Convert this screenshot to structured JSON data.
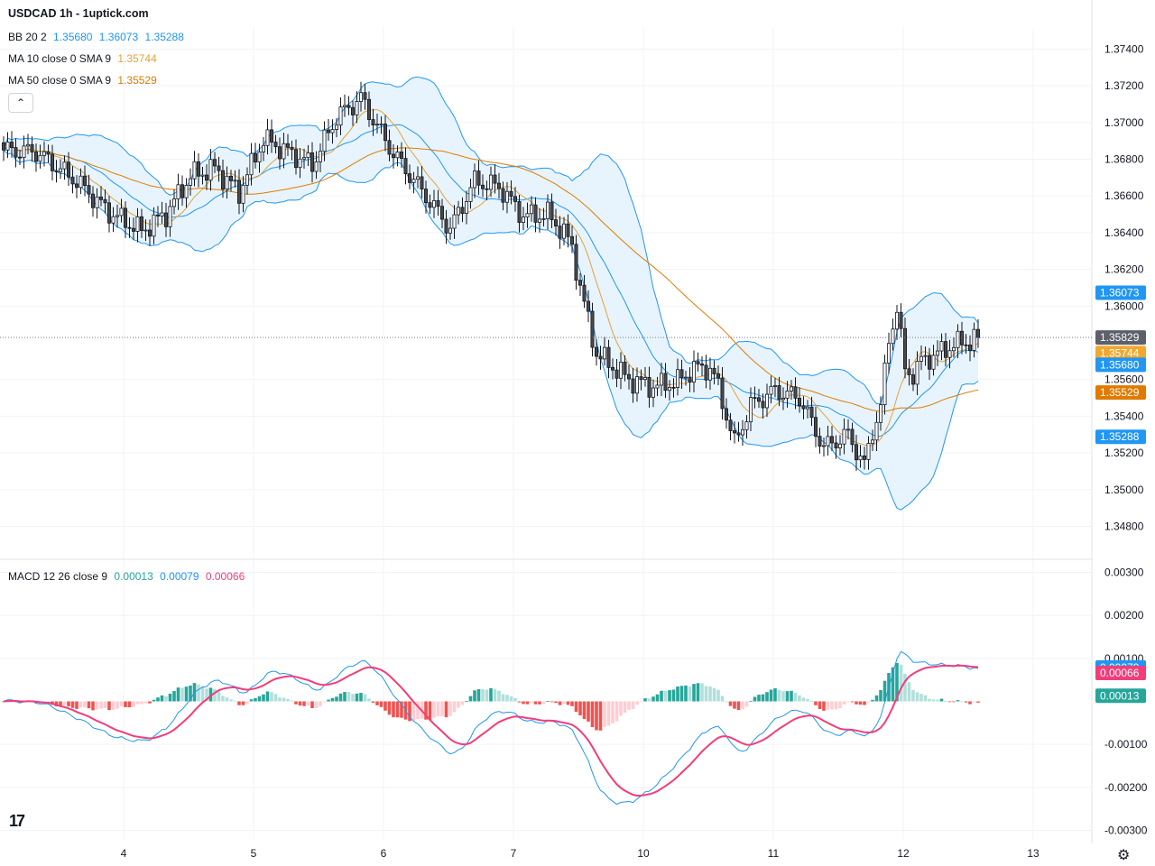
{
  "header": {
    "title": "USDCAD 1h - 1uptick.com"
  },
  "legend": {
    "bb": {
      "label": "BB 20 2",
      "values": [
        "1.35680",
        "1.36073",
        "1.35288"
      ]
    },
    "ma10": {
      "label": "MA 10 close 0 SMA 9",
      "value": "1.35744"
    },
    "ma50": {
      "label": "MA 50 close 0 SMA 9",
      "value": "1.35529"
    },
    "macd": {
      "label": "MACD 12 26 close 9",
      "values": [
        "0.00013",
        "0.00079",
        "0.00066"
      ]
    }
  },
  "colors": {
    "up": "#ffffff",
    "down": "#4a4a4a",
    "bb": "#2196f3",
    "bb_fill": "#e3f2fd",
    "ma10": "#e6a23c",
    "ma50": "#e07b00",
    "macd_line": "#2196f3",
    "signal_line": "#f23d7a",
    "hist_up_strong": "#26a69a",
    "hist_up_weak": "#b2dfdb",
    "hist_down_strong": "#ef5350",
    "hist_down_weak": "#ffcdd2",
    "grid": "#f0f3fa",
    "axis_text": "#131722"
  },
  "chart_data": [
    {
      "type": "candlestick",
      "title": "USDCAD 1h - 1uptick.com",
      "x_ticks": [
        "4",
        "5",
        "6",
        "7",
        "10",
        "11",
        "12",
        "13"
      ],
      "y_ticks": [
        "1.37400",
        "1.37200",
        "1.37000",
        "1.36800",
        "1.36600",
        "1.36400",
        "1.36200",
        "1.36000",
        "1.35600",
        "1.35400",
        "1.35200",
        "1.35000",
        "1.34800"
      ],
      "ylim": [
        1.3466,
        1.3752
      ],
      "last_price": "1.35829",
      "last_price_value": 1.35829,
      "price_labels": [
        {
          "text": "1.36073",
          "value": 1.36073,
          "color": "#2196f3"
        },
        {
          "text": "1.35829",
          "value": 1.35829,
          "color": "#5d606b"
        },
        {
          "text": "1.35744",
          "value": 1.35744,
          "color": "#f0a830"
        },
        {
          "text": "1.35680",
          "value": 1.3568,
          "color": "#2196f3"
        },
        {
          "text": "1.35529",
          "value": 1.35529,
          "color": "#e07b00"
        },
        {
          "text": "1.35288",
          "value": 1.35288,
          "color": "#2196f3"
        }
      ],
      "close_anchors": [
        [
          0,
          1.3685
        ],
        [
          8,
          1.3684
        ],
        [
          18,
          1.3668
        ],
        [
          26,
          1.3651
        ],
        [
          34,
          1.3641
        ],
        [
          40,
          1.365
        ],
        [
          46,
          1.3671
        ],
        [
          52,
          1.3675
        ],
        [
          58,
          1.3662
        ],
        [
          64,
          1.3691
        ],
        [
          70,
          1.3684
        ],
        [
          76,
          1.3677
        ],
        [
          82,
          1.3703
        ],
        [
          88,
          1.3713
        ],
        [
          96,
          1.3683
        ],
        [
          104,
          1.366
        ],
        [
          110,
          1.3642
        ],
        [
          116,
          1.3668
        ],
        [
          122,
          1.3665
        ],
        [
          128,
          1.3649
        ],
        [
          134,
          1.365
        ],
        [
          138,
          1.364
        ],
        [
          140,
          1.3632
        ],
        [
          142,
          1.361
        ],
        [
          146,
          1.3574
        ],
        [
          150,
          1.3567
        ],
        [
          154,
          1.356
        ],
        [
          160,
          1.3556
        ],
        [
          166,
          1.3559
        ],
        [
          170,
          1.3566
        ],
        [
          174,
          1.3566
        ],
        [
          176,
          1.3556
        ],
        [
          180,
          1.3525
        ],
        [
          184,
          1.3546
        ],
        [
          190,
          1.3554
        ],
        [
          196,
          1.355
        ],
        [
          202,
          1.3523
        ],
        [
          208,
          1.353
        ],
        [
          212,
          1.3513
        ],
        [
          214,
          1.3532
        ],
        [
          216,
          1.3545
        ],
        [
          218,
          1.3582
        ],
        [
          220,
          1.3599
        ],
        [
          222,
          1.3565
        ],
        [
          224,
          1.3563
        ],
        [
          226,
          1.357
        ],
        [
          230,
          1.3574
        ],
        [
          234,
          1.3579
        ],
        [
          238,
          1.3581
        ],
        [
          240,
          1.3583
        ]
      ]
    },
    {
      "type": "macd",
      "y_ticks": [
        "0.00300",
        "0.00200",
        "0.00100",
        "-0.00100",
        "-0.00200",
        "-0.00300"
      ],
      "ylim": [
        -0.0032,
        0.0032
      ],
      "price_labels": [
        {
          "text": "0.00079",
          "value": 0.00079,
          "color": "#2196f3"
        },
        {
          "text": "0.00066",
          "value": 0.00066,
          "color": "#f23d7a"
        },
        {
          "text": "0.00013",
          "value": 0.00013,
          "color": "#26a69a"
        }
      ]
    }
  ]
}
